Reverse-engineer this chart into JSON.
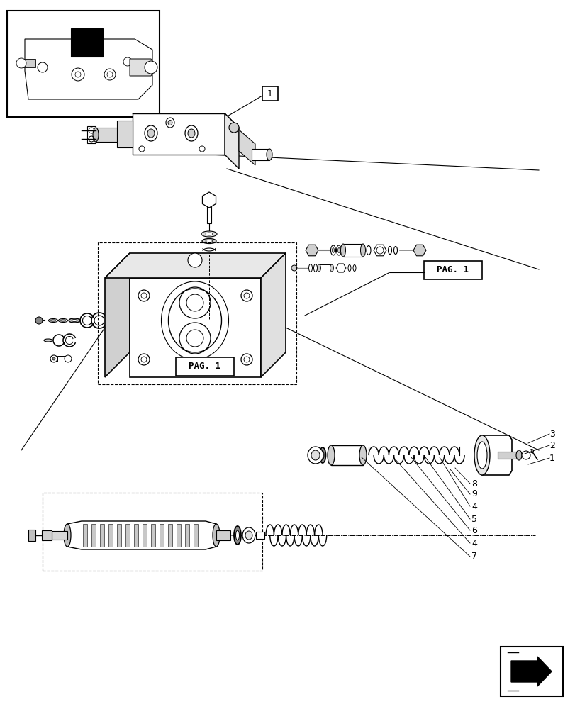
{
  "background_color": "#ffffff",
  "line_color": "#000000",
  "pag1_label": "PAG. 1",
  "part_labels": [
    "1",
    "2",
    "3",
    "4",
    "5",
    "6",
    "4",
    "7",
    "8",
    "9"
  ]
}
